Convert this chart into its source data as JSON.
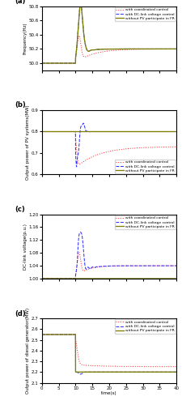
{
  "xlim": [
    0,
    40
  ],
  "xticks": [
    0,
    5,
    10,
    15,
    20,
    25,
    30,
    35,
    40
  ],
  "xlabel": "time(s)",
  "panel_a": {
    "ylabel": "Frequency(Hz)",
    "ylim": [
      49.9,
      50.8
    ],
    "yticks": [
      50.0,
      50.2,
      50.4,
      50.6,
      50.8
    ],
    "label": "(a)"
  },
  "panel_b": {
    "ylabel": "Output power of PV systems(MW)",
    "ylim": [
      0.6,
      0.9
    ],
    "yticks": [
      0.6,
      0.7,
      0.8,
      0.9
    ],
    "label": "(b)"
  },
  "panel_c": {
    "ylabel": "DC-link voltage(p.u.)",
    "ylim": [
      1.0,
      1.2
    ],
    "yticks": [
      1.0,
      1.04,
      1.08,
      1.12,
      1.16,
      1.2
    ],
    "label": "(c)"
  },
  "panel_d": {
    "ylabel": "Output power of diesel generator(MW)",
    "ylim": [
      2.1,
      2.7
    ],
    "yticks": [
      2.1,
      2.2,
      2.3,
      2.4,
      2.5,
      2.6,
      2.7
    ],
    "label": "(d)"
  },
  "colors": {
    "coordinated": "#ff3333",
    "dclink": "#3333ff",
    "without": "#808000"
  },
  "legend_labels": [
    "with coordinated control",
    "with DC-link voltage control",
    "without PV participate in FR"
  ]
}
